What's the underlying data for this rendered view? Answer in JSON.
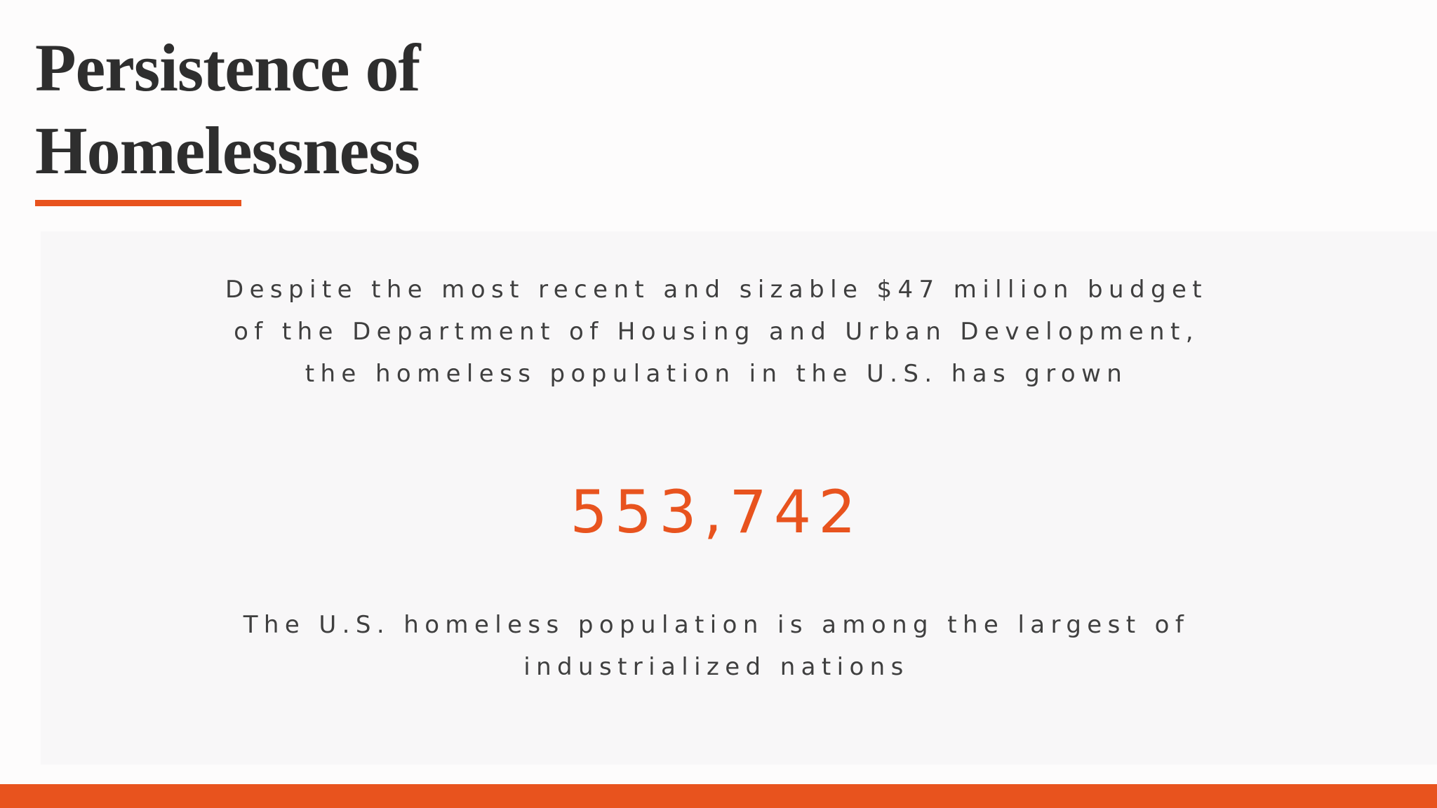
{
  "header": {
    "title": "Persistence of Homelessness"
  },
  "body": {
    "intro": "Despite the most recent and sizable $47 million budget of the Department of Housing and Urban Development, the homeless population in the U.S. has grown",
    "figure": "553,742",
    "note": "The U.S. homeless population is among the largest of industrialized nations"
  }
}
